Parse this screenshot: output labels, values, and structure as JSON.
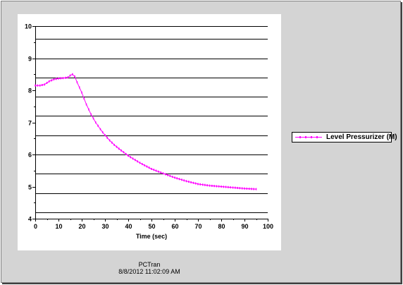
{
  "footer": {
    "app_name": "PCTran",
    "timestamp": "8/8/2012 11:02:09 AM"
  },
  "colors": {
    "series": "#ff00ff",
    "grid": "#000000",
    "panel": "#d4d4d4"
  },
  "chart_data": {
    "type": "line",
    "title": "",
    "xlabel": "Time (sec)",
    "ylabel": "",
    "xlim": [
      0,
      100
    ],
    "ylim": [
      4,
      10
    ],
    "xticks": [
      0,
      10,
      20,
      30,
      40,
      50,
      60,
      70,
      80,
      90,
      100
    ],
    "yticks": [
      4,
      5,
      6,
      7,
      8,
      9,
      10
    ],
    "ygridlines": [
      4.2,
      4.8,
      5.4,
      6.0,
      6.6,
      7.2,
      7.8,
      8.4,
      9.0,
      9.6,
      10.0
    ],
    "grid": true,
    "legend_position": "right",
    "series": [
      {
        "name": "Level Pressurizer (M)",
        "x": [
          0,
          2,
          4,
          6,
          8,
          10,
          12,
          14,
          15,
          16,
          17,
          18,
          20,
          22,
          24,
          26,
          28,
          30,
          32,
          34,
          36,
          38,
          40,
          45,
          50,
          55,
          60,
          65,
          70,
          75,
          80,
          85,
          90,
          95
        ],
        "y": [
          8.15,
          8.15,
          8.18,
          8.28,
          8.34,
          8.37,
          8.38,
          8.4,
          8.46,
          8.5,
          8.43,
          8.25,
          7.93,
          7.56,
          7.25,
          7.0,
          6.79,
          6.6,
          6.44,
          6.3,
          6.18,
          6.07,
          5.96,
          5.74,
          5.55,
          5.41,
          5.28,
          5.17,
          5.08,
          5.03,
          5.0,
          4.97,
          4.94,
          4.92
        ]
      }
    ]
  }
}
